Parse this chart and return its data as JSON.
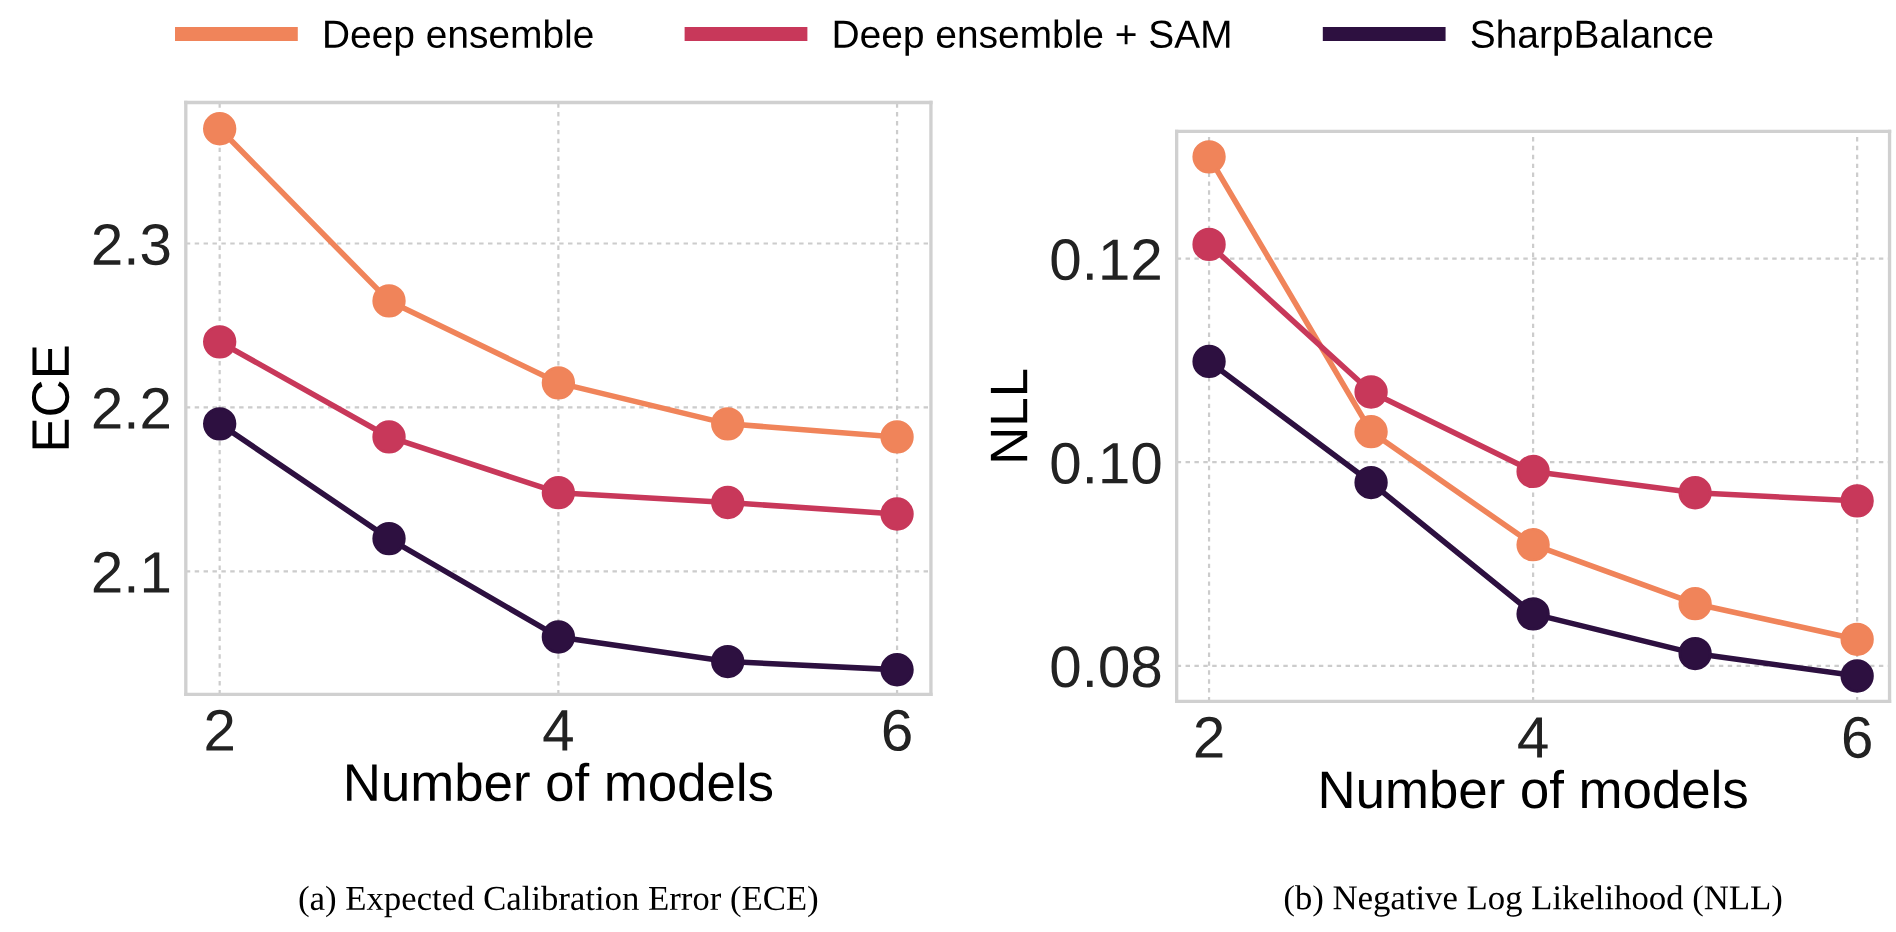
{
  "chart_data": [
    {
      "type": "line",
      "xlabel": "Number of models",
      "ylabel": "ECE",
      "x": [
        2,
        3,
        4,
        5,
        6
      ],
      "xlim": [
        1.8,
        6.2
      ],
      "xticks": [
        2,
        4,
        6
      ],
      "ylim": [
        2.025,
        2.386
      ],
      "yticks": [
        2.1,
        2.2,
        2.3
      ],
      "grid": true,
      "marker": "circle",
      "line_style": "solid",
      "legend": "top",
      "series": [
        {
          "name": "Deep ensemble",
          "color": "#f0845a",
          "values": [
            2.37,
            2.265,
            2.215,
            2.19,
            2.182
          ]
        },
        {
          "name": "Deep ensemble + SAM",
          "color": "#c8385a",
          "values": [
            2.24,
            2.182,
            2.148,
            2.142,
            2.135
          ]
        },
        {
          "name": "SharpBalance",
          "color": "#2d1040",
          "values": [
            2.19,
            2.12,
            2.06,
            2.045,
            2.04
          ]
        }
      ],
      "annotations": [
        "(a) Expected Calibration Error (ECE)"
      ]
    },
    {
      "type": "line",
      "xlabel": "Number of models",
      "ylabel": "NLL",
      "x": [
        2,
        3,
        4,
        5,
        6
      ],
      "xlim": [
        1.8,
        6.2
      ],
      "xticks": [
        2,
        4,
        6
      ],
      "ylim": [
        0.0765,
        0.1325
      ],
      "yticks": [
        {
          "value": 0.08,
          "label": "0.08"
        },
        {
          "value": 0.1,
          "label": "0.10"
        },
        {
          "value": 0.12,
          "label": "0.12"
        }
      ],
      "grid": true,
      "marker": "circle",
      "line_style": "solid",
      "series": [
        {
          "color": "#f0845a",
          "values": [
            0.13,
            0.103,
            0.0919,
            0.0861,
            0.0826
          ]
        },
        {
          "color": "#c8385a",
          "values": [
            0.1214,
            0.1069,
            0.0991,
            0.097,
            0.0962
          ]
        },
        {
          "color": "#2d1040",
          "values": [
            0.1099,
            0.098,
            0.0851,
            0.0812,
            0.079
          ]
        }
      ],
      "annotations": [
        "(b) Negative Log Likelihood (NLL)"
      ]
    }
  ]
}
